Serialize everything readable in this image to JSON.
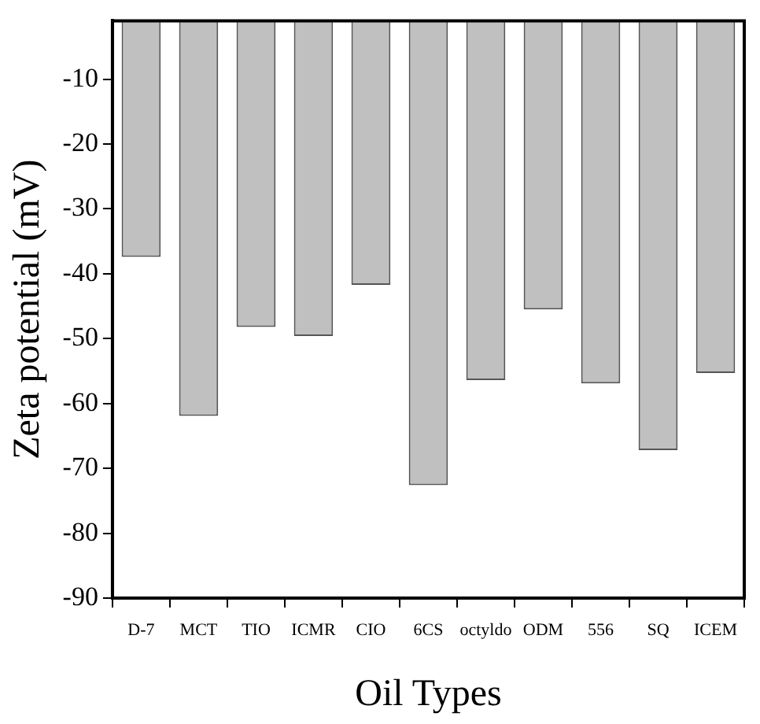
{
  "chart_data": {
    "type": "bar",
    "xlabel": "Oil Types",
    "ylabel": "Zeta potential (mV)",
    "categories": [
      "D-7",
      "MCT",
      "TIO",
      "ICMR",
      "CIO",
      "6CS",
      "octyldo",
      "ODM",
      "556",
      "SQ",
      "ICEM"
    ],
    "values": [
      -37.4,
      -61.9,
      -48.2,
      -49.6,
      -41.7,
      -72.6,
      -56.4,
      -45.5,
      -56.9,
      -67.2,
      -55.3
    ],
    "color": "#c0c0c0",
    "ylim": [
      -90,
      -1
    ],
    "yticks": [
      -10,
      -20,
      -30,
      -40,
      -50,
      -60,
      -70,
      -80,
      -90
    ],
    "grid": false,
    "legend": false
  }
}
